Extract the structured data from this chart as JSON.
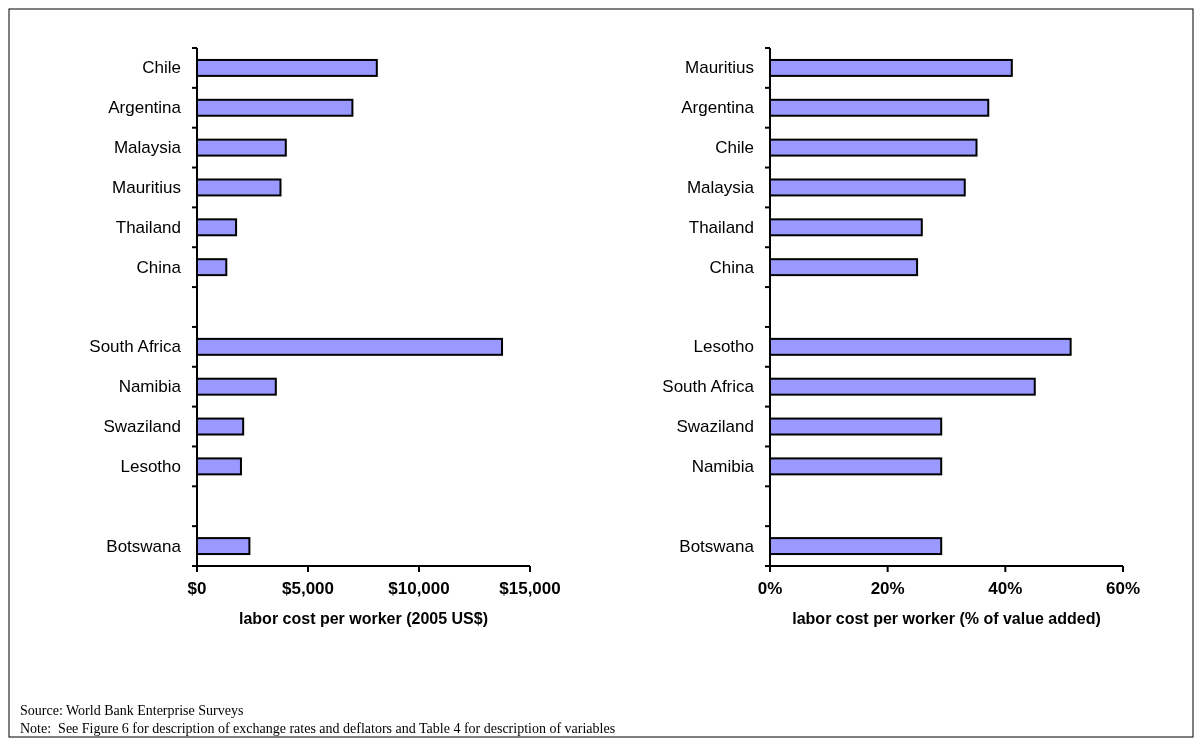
{
  "chart_data": [
    {
      "type": "bar",
      "orientation": "horizontal",
      "xlabel": "labor cost per worker (2005 US$)",
      "categories": [
        "Chile",
        "Argentina",
        "Malaysia",
        "Mauritius",
        "Thailand",
        "China",
        null,
        "South Africa",
        "Namibia",
        "Swaziland",
        "Lesotho",
        null,
        "Botswana"
      ],
      "values": [
        8100,
        7000,
        4000,
        3760,
        1760,
        1320,
        null,
        13740,
        3550,
        2080,
        1980,
        null,
        2360
      ],
      "color": "#9999ff",
      "xlim": [
        0,
        15000
      ],
      "xticks": [
        {
          "value": 0,
          "label": "$0"
        },
        {
          "value": 5000,
          "label": "$5,000"
        },
        {
          "value": 10000,
          "label": "$10,000"
        },
        {
          "value": 15000,
          "label": "$15,000"
        }
      ],
      "grid": false,
      "annotations": [
        "Source: World Bank Enterprise Surveys",
        "Note:  See Figure 6 for description of exchange rates and deflators and Table 4 for description of variables"
      ]
    },
    {
      "type": "bar",
      "orientation": "horizontal",
      "xlabel": "labor cost per worker (% of value added)",
      "categories": [
        "Mauritius",
        "Argentina",
        "Chile",
        "Malaysia",
        "Thailand",
        "China",
        null,
        "Lesotho",
        "South Africa",
        "Swaziland",
        "Namibia",
        null,
        "Botswana"
      ],
      "values": [
        41.1,
        37.1,
        35.1,
        33.1,
        25.8,
        25.0,
        null,
        51.1,
        45.0,
        29.1,
        29.1,
        null,
        29.1
      ],
      "color": "#9999ff",
      "xlim": [
        0,
        60
      ],
      "xticks": [
        {
          "value": 0,
          "label": "0%"
        },
        {
          "value": 20,
          "label": "20%"
        },
        {
          "value": 40,
          "label": "40%"
        },
        {
          "value": 60,
          "label": "60%"
        }
      ],
      "grid": false
    }
  ]
}
